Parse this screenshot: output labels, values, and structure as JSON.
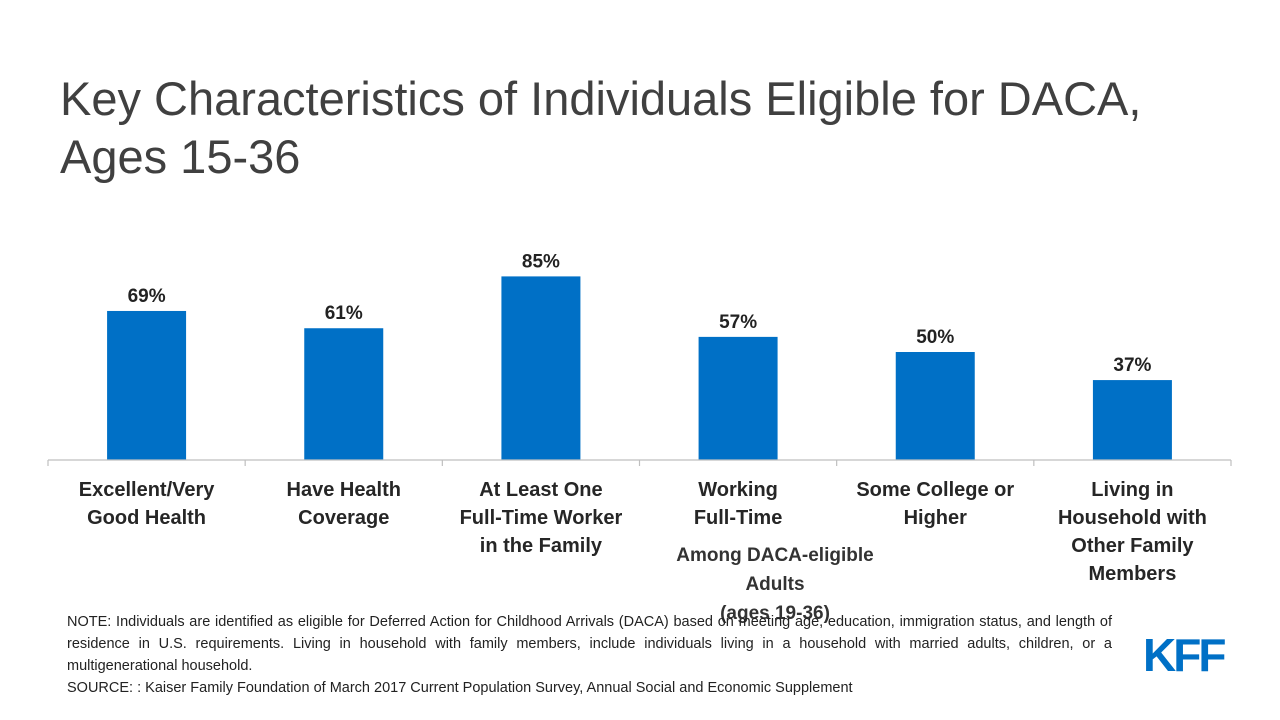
{
  "title_lines": [
    "Key Characteristics of Individuals Eligible for DACA,",
    "Ages 15-36"
  ],
  "chart_data": {
    "type": "bar",
    "categories": [
      [
        "Excellent/Very",
        "Good Health"
      ],
      [
        "Have Health",
        "Coverage"
      ],
      [
        "At Least One",
        "Full-Time Worker",
        "in the Family"
      ],
      [
        "Working",
        "Full-Time"
      ],
      [
        "Some College or",
        "Higher"
      ],
      [
        "Living in",
        "Household with",
        "Other Family",
        "Members"
      ]
    ],
    "values": [
      69,
      61,
      85,
      57,
      50,
      37
    ],
    "value_labels": [
      "69%",
      "61%",
      "85%",
      "57%",
      "50%",
      "37%"
    ],
    "ylim": [
      0,
      100
    ],
    "bar_color": "#0070C6",
    "grid": false
  },
  "group_note": [
    "Among DACA-eligible Adults",
    "(ages 19-36)"
  ],
  "note": "NOTE:  Individuals  are  identified  as  eligible  for  Deferred  Action  for  Childhood  Arrivals  (DACA)  based  on  meeting  age,  education,  immigration  status,  and  length  of  residence  in U.S.  requirements.  Living  in  household  with  family  members,  include  individuals  living  in  a  household  with  married adults,  children,  or  a  multigenerational  household.",
  "source": "SOURCE:  : Kaiser Family Foundation of March 2017 Current Population Survey, Annual Social and Economic Supplement",
  "logo_text": "KFF",
  "logo_color": "#0070C6"
}
